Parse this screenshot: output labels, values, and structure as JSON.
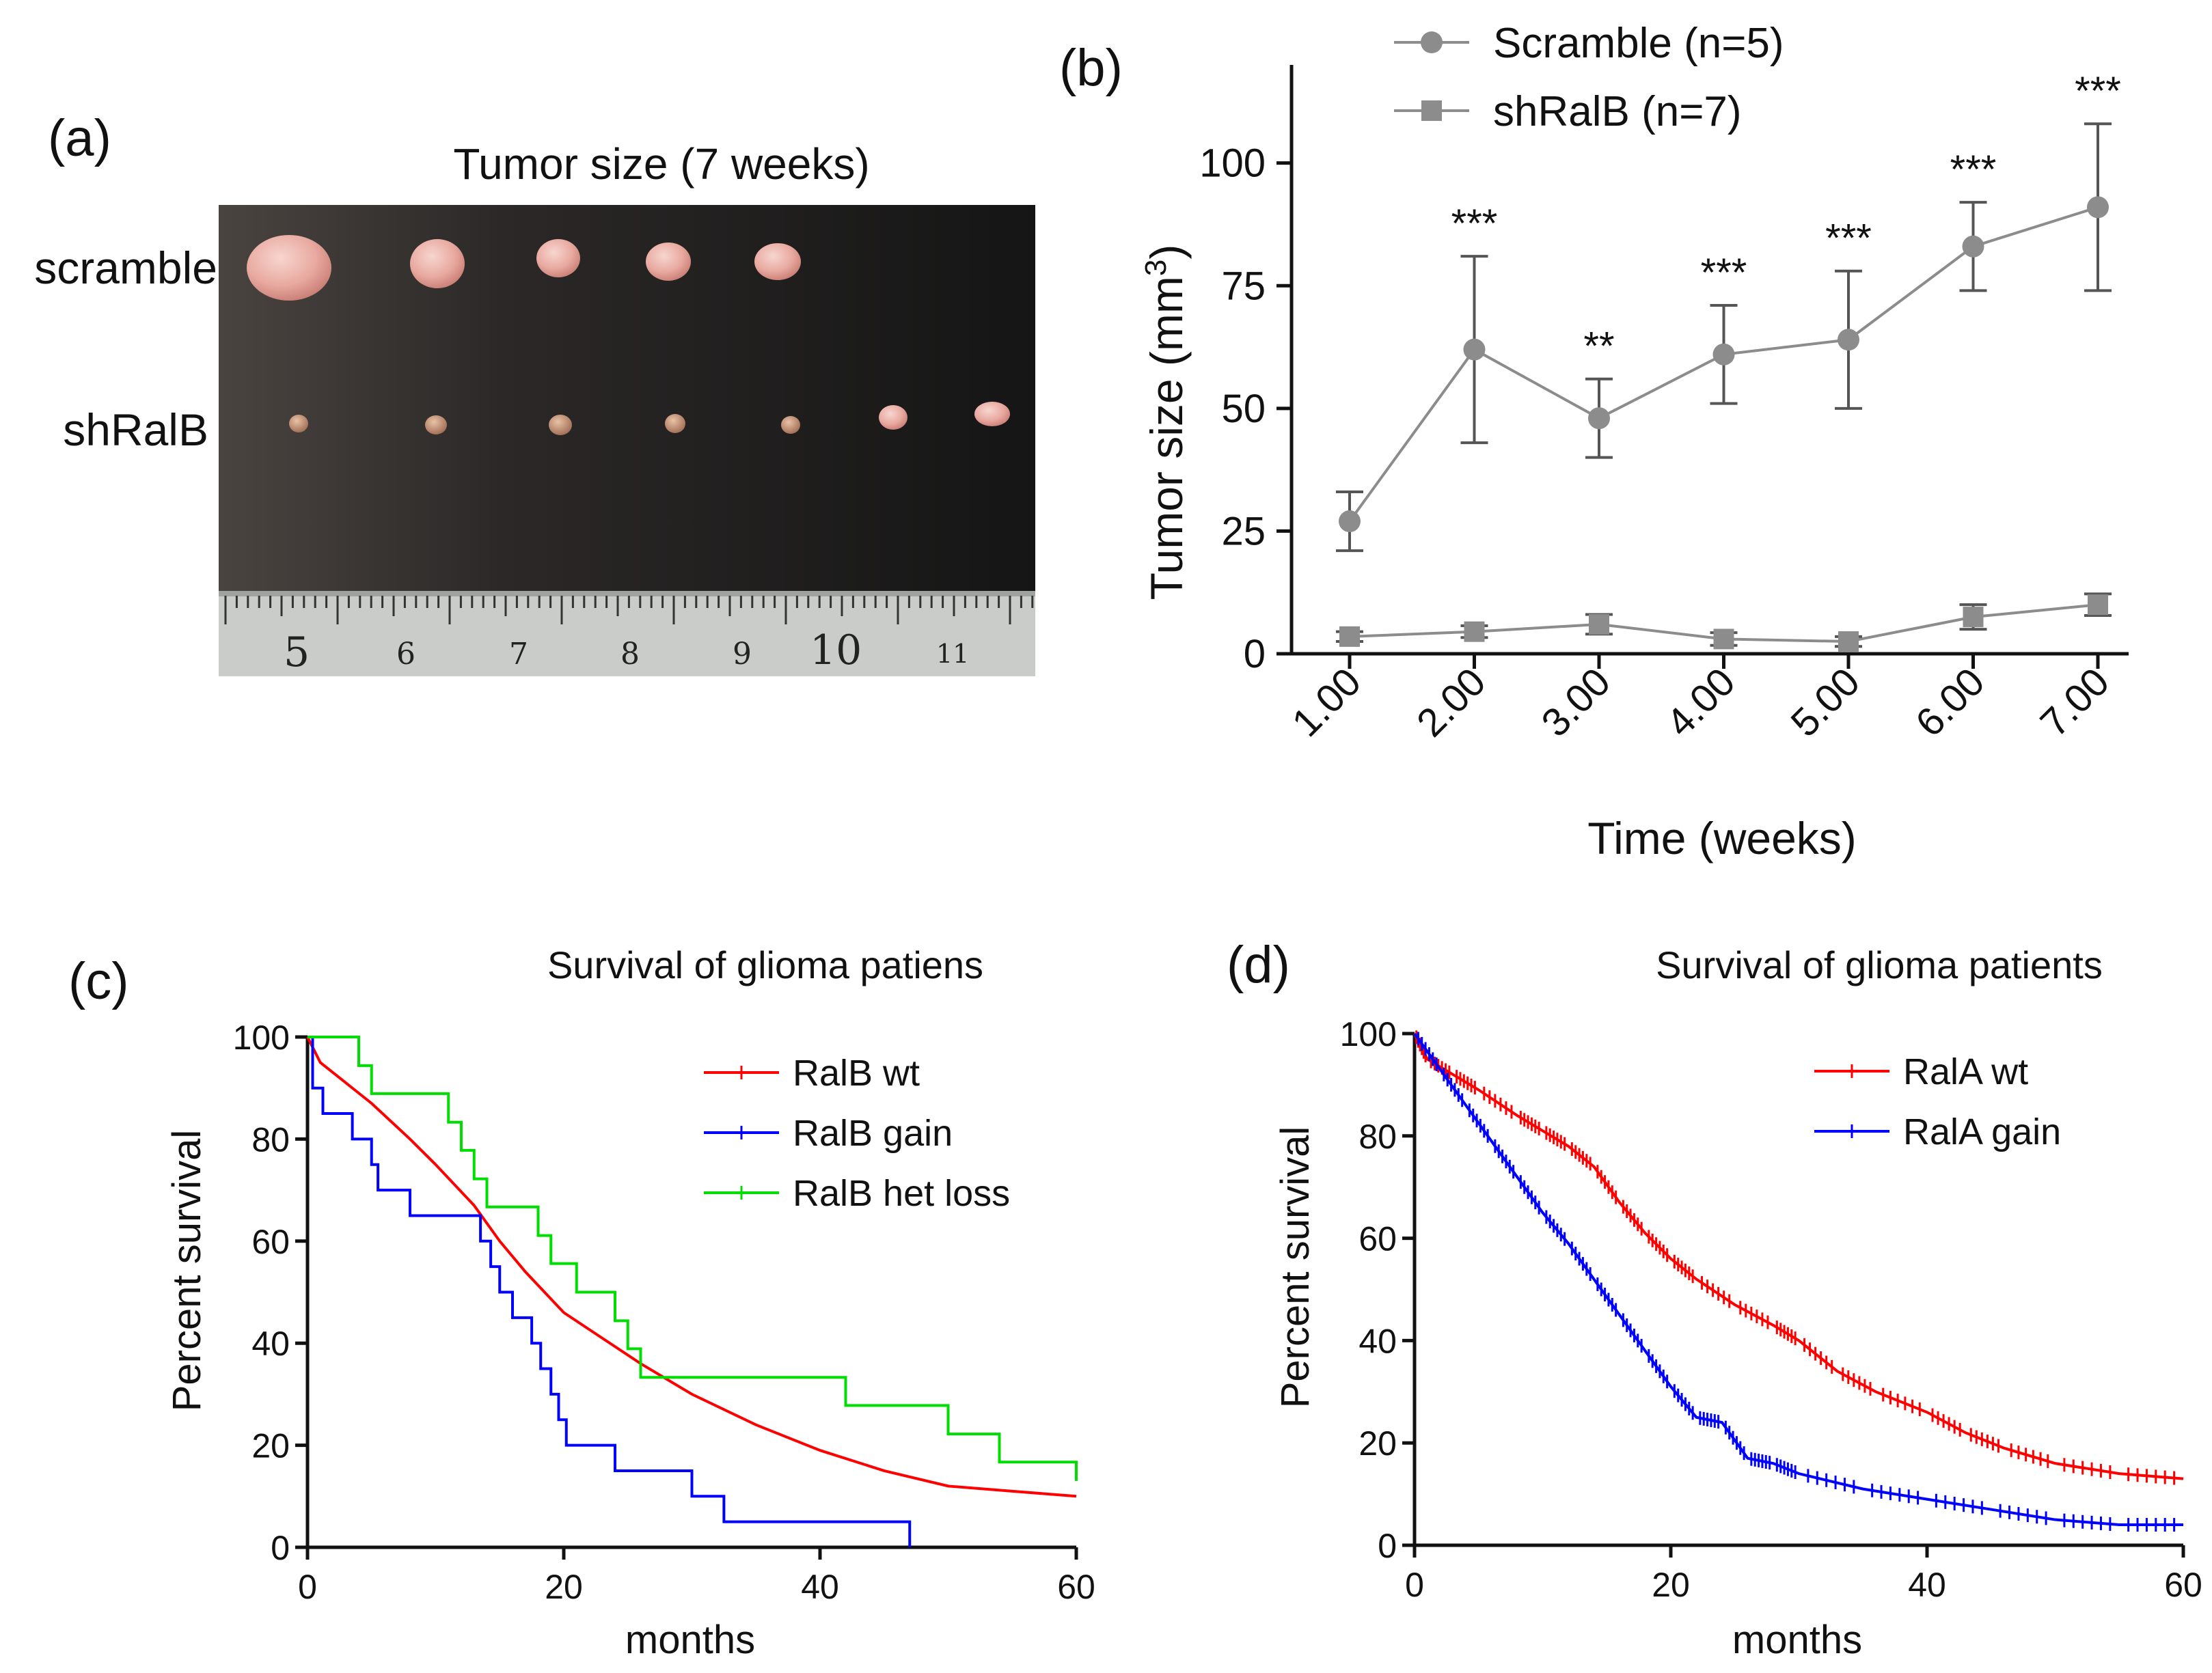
{
  "panel_a": {
    "label": "(a)",
    "title": "Tumor size (7 weeks)",
    "row_labels": [
      "scramble",
      "shRalB"
    ],
    "ruler_numbers": [
      "5",
      "6",
      "7",
      "8",
      "9",
      "10",
      "11"
    ]
  },
  "chart_data": [
    {
      "id": "b",
      "type": "line",
      "panel_label": "(b)",
      "xlabel": "Time (weeks)",
      "ylabel": "Tumor size (mm³)",
      "ylabel_main": "Tumor size (mm",
      "ylabel_sup": "3",
      "ylabel_close": ")",
      "x": [
        1,
        2,
        3,
        4,
        5,
        6,
        7
      ],
      "x_tick_labels": [
        "1.00",
        "2.00",
        "3.00",
        "4.00",
        "5.00",
        "6.00",
        "7.00"
      ],
      "ylim": [
        0,
        120
      ],
      "y_ticks": [
        0,
        25,
        50,
        75,
        100
      ],
      "y_tick_labels": [
        "0",
        "25",
        "50",
        "75",
        "100"
      ],
      "series": [
        {
          "name": "Scramble (n=5)",
          "marker": "circle",
          "color": "#8c8c8c",
          "values": [
            27,
            62,
            48,
            61,
            64,
            83,
            91
          ],
          "errors": [
            6,
            19,
            8,
            10,
            14,
            9,
            17
          ]
        },
        {
          "name": "shRalB (n=7)",
          "marker": "square",
          "color": "#8c8c8c",
          "values": [
            3.5,
            4.5,
            6,
            3,
            2.5,
            7.5,
            10
          ],
          "errors": [
            1,
            1.2,
            2,
            1.3,
            1,
            2.5,
            2.2
          ]
        }
      ],
      "annotations": [
        {
          "x": 2,
          "text": "***"
        },
        {
          "x": 3,
          "text": "**"
        },
        {
          "x": 4,
          "text": "***"
        },
        {
          "x": 5,
          "text": "***"
        },
        {
          "x": 6,
          "text": "***"
        },
        {
          "x": 7,
          "text": "***"
        }
      ]
    },
    {
      "id": "c",
      "type": "line",
      "subtype": "kaplan-meier",
      "panel_label": "(c)",
      "title": "Survival of glioma patiens",
      "xlabel": "months",
      "ylabel": "Percent survival",
      "xlim": [
        0,
        60
      ],
      "ylim": [
        0,
        100
      ],
      "x_ticks": [
        0,
        20,
        40,
        60
      ],
      "x_tick_labels": [
        "0",
        "20",
        "40",
        "60"
      ],
      "y_ticks": [
        0,
        20,
        40,
        60,
        80,
        100
      ],
      "y_tick_labels": [
        "0",
        "20",
        "40",
        "60",
        "80",
        "100"
      ],
      "series": [
        {
          "name": "RalB wt",
          "color": "#ff0000",
          "step": false,
          "points": [
            [
              0,
              100
            ],
            [
              1,
              95
            ],
            [
              3,
              91
            ],
            [
              5,
              87
            ],
            [
              8,
              80
            ],
            [
              10,
              75
            ],
            [
              13,
              67
            ],
            [
              15,
              60
            ],
            [
              17,
              54
            ],
            [
              20,
              46
            ],
            [
              23,
              41
            ],
            [
              26,
              36
            ],
            [
              30,
              30
            ],
            [
              35,
              24
            ],
            [
              40,
              19
            ],
            [
              45,
              15
            ],
            [
              50,
              12
            ],
            [
              55,
              11
            ],
            [
              60,
              10
            ]
          ]
        },
        {
          "name": "RalB gain",
          "color": "#0000ff",
          "step": true,
          "points": [
            [
              0,
              100
            ],
            [
              0.4,
              90
            ],
            [
              1.2,
              85
            ],
            [
              3.5,
              80
            ],
            [
              5,
              75
            ],
            [
              5.5,
              70
            ],
            [
              8,
              65
            ],
            [
              13.5,
              60
            ],
            [
              14.3,
              55
            ],
            [
              15,
              50
            ],
            [
              16,
              45
            ],
            [
              17.5,
              40
            ],
            [
              18.2,
              35
            ],
            [
              19,
              30
            ],
            [
              19.6,
              25
            ],
            [
              20.2,
              20
            ],
            [
              24,
              15
            ],
            [
              30,
              10
            ],
            [
              32.5,
              5
            ],
            [
              47,
              0
            ]
          ]
        },
        {
          "name": "RalB het loss",
          "color": "#00dd00",
          "step": true,
          "points": [
            [
              0,
              100
            ],
            [
              4,
              94.4
            ],
            [
              5,
              88.9
            ],
            [
              11,
              83.3
            ],
            [
              12,
              77.8
            ],
            [
              13,
              72.2
            ],
            [
              14,
              66.7
            ],
            [
              18,
              61.1
            ],
            [
              19,
              55.6
            ],
            [
              21,
              50
            ],
            [
              24,
              44.4
            ],
            [
              25,
              38.9
            ],
            [
              26,
              33.3
            ],
            [
              42,
              27.8
            ],
            [
              50,
              22.2
            ],
            [
              54,
              16.7
            ],
            [
              60,
              13
            ]
          ]
        }
      ]
    },
    {
      "id": "d",
      "type": "line",
      "subtype": "kaplan-meier",
      "panel_label": "(d)",
      "title": "Survival of glioma patients",
      "xlabel": "months",
      "ylabel": "Percent survival",
      "xlim": [
        0,
        60
      ],
      "ylim": [
        0,
        100
      ],
      "x_ticks": [
        0,
        20,
        40,
        60
      ],
      "x_tick_labels": [
        "0",
        "20",
        "40",
        "60"
      ],
      "y_ticks": [
        0,
        20,
        40,
        60,
        80,
        100
      ],
      "y_tick_labels": [
        "0",
        "20",
        "40",
        "60",
        "80",
        "100"
      ],
      "series": [
        {
          "name": "RalA wt",
          "color": "#ff0000",
          "step": false,
          "points": [
            [
              0,
              100
            ],
            [
              1,
              95
            ],
            [
              3,
              92
            ],
            [
              5,
              89
            ],
            [
              8,
              84
            ],
            [
              10,
              81
            ],
            [
              12,
              78
            ],
            [
              14,
              74
            ],
            [
              16,
              67
            ],
            [
              18,
              61
            ],
            [
              20,
              56
            ],
            [
              22,
              52
            ],
            [
              25,
              47
            ],
            [
              28,
              43
            ],
            [
              30,
              40
            ],
            [
              33,
              34
            ],
            [
              36,
              30
            ],
            [
              40,
              26
            ],
            [
              43,
              22
            ],
            [
              46,
              19
            ],
            [
              50,
              16
            ],
            [
              55,
              14
            ],
            [
              60,
              13
            ]
          ]
        },
        {
          "name": "RalA gain",
          "color": "#0000ff",
          "step": false,
          "points": [
            [
              0,
              100
            ],
            [
              2,
              93
            ],
            [
              4,
              86
            ],
            [
              6,
              79
            ],
            [
              8,
              72
            ],
            [
              10,
              65
            ],
            [
              12,
              59
            ],
            [
              14,
              52
            ],
            [
              16,
              45
            ],
            [
              18,
              38
            ],
            [
              20,
              31
            ],
            [
              22,
              25
            ],
            [
              24,
              24
            ],
            [
              26,
              17
            ],
            [
              28,
              16
            ],
            [
              30,
              14
            ],
            [
              35,
              11
            ],
            [
              40,
              9
            ],
            [
              45,
              7
            ],
            [
              50,
              5
            ],
            [
              55,
              4
            ],
            [
              60,
              4
            ]
          ]
        }
      ]
    }
  ]
}
